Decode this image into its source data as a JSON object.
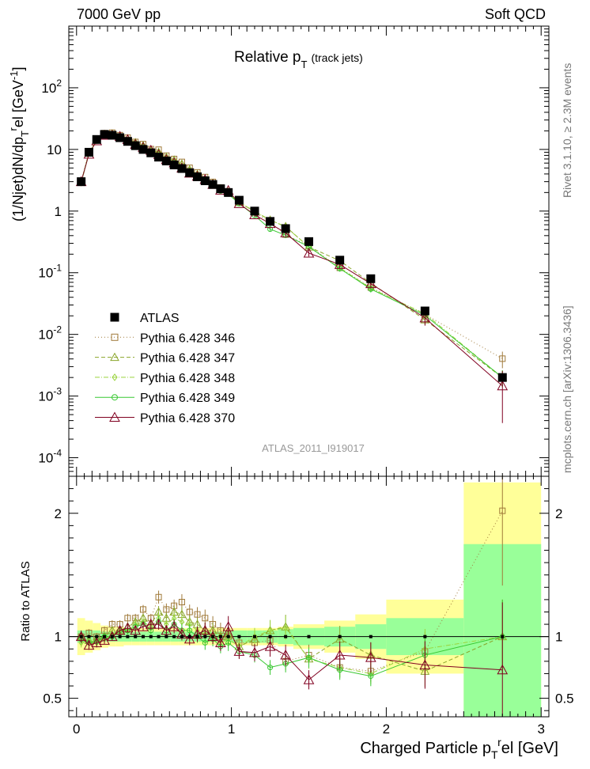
{
  "header": {
    "left": "7000 GeV pp",
    "right": "Soft QCD"
  },
  "title": {
    "main": "Relative p",
    "sub": "T",
    "suffix": "(track jets)"
  },
  "side": {
    "top": "Rivet 3.1.10, ≥ 2.3M events",
    "bottom": "mcplots.cern.ch [arXiv:1306.3436]"
  },
  "analysis": "ATLAS_2011_I919017",
  "ylabel_top": "(1/Njet)dN/dp_T^r el [GeV^-1]",
  "ylabel_bottom": "Ratio to ATLAS",
  "xlabel": "Charged Particle p_T^r el [GeV]",
  "colors": {
    "data": "#000000",
    "s346": "#a07a3a",
    "s347": "#8aa52a",
    "s348": "#9ad43e",
    "s349": "#39c832",
    "s370": "#800020",
    "band_yellow": "#ffff99",
    "band_green": "#99ff99"
  },
  "legend": [
    {
      "key": "data",
      "label": "ATLAS"
    },
    {
      "key": "s346",
      "label": "Pythia 6.428 346"
    },
    {
      "key": "s347",
      "label": "Pythia 6.428 347"
    },
    {
      "key": "s348",
      "label": "Pythia 6.428 348"
    },
    {
      "key": "s349",
      "label": "Pythia 6.428 349"
    },
    {
      "key": "s370",
      "label": "Pythia 6.428 370"
    }
  ],
  "chart_data": {
    "type": "scatter",
    "yscale": "log",
    "xlim": [
      -0.05,
      3.05
    ],
    "ylim": [
      5e-05,
      1000
    ],
    "ratio_ylim": [
      0.35,
      2.3
    ],
    "x_ticks": [
      "0",
      "1",
      "2",
      "3"
    ],
    "y_ticks": [
      "10^-4",
      "10^-3",
      "10^-2",
      "10^-1",
      "1",
      "10",
      "10^2"
    ],
    "ratio_ticks": [
      "0.5",
      "1",
      "2"
    ],
    "x": [
      0.03,
      0.08,
      0.13,
      0.18,
      0.23,
      0.28,
      0.33,
      0.38,
      0.43,
      0.48,
      0.53,
      0.58,
      0.63,
      0.68,
      0.73,
      0.78,
      0.83,
      0.88,
      0.93,
      0.98,
      1.05,
      1.15,
      1.25,
      1.35,
      1.5,
      1.7,
      1.9,
      2.25,
      2.75
    ],
    "xwidth": [
      0.025,
      0.025,
      0.025,
      0.025,
      0.025,
      0.025,
      0.025,
      0.025,
      0.025,
      0.025,
      0.025,
      0.025,
      0.025,
      0.025,
      0.025,
      0.025,
      0.025,
      0.025,
      0.025,
      0.025,
      0.05,
      0.05,
      0.05,
      0.05,
      0.1,
      0.1,
      0.1,
      0.25,
      0.25
    ],
    "data": [
      3.0,
      9.0,
      14.5,
      17.5,
      17.0,
      15.5,
      13.5,
      11.5,
      10.0,
      8.8,
      7.5,
      6.5,
      5.6,
      4.9,
      4.2,
      3.6,
      3.1,
      2.7,
      2.3,
      2.0,
      1.5,
      1.0,
      0.68,
      0.52,
      0.32,
      0.16,
      0.08,
      0.024,
      0.002
    ],
    "band_green": [
      0.05,
      0.05,
      0.05,
      0.04,
      0.04,
      0.04,
      0.04,
      0.04,
      0.04,
      0.04,
      0.04,
      0.04,
      0.04,
      0.04,
      0.04,
      0.04,
      0.04,
      0.04,
      0.04,
      0.04,
      0.05,
      0.05,
      0.05,
      0.06,
      0.07,
      0.08,
      0.1,
      0.15,
      0.75
    ],
    "band_yellow": [
      0.15,
      0.13,
      0.11,
      0.09,
      0.08,
      0.08,
      0.07,
      0.07,
      0.07,
      0.07,
      0.07,
      0.07,
      0.07,
      0.07,
      0.07,
      0.07,
      0.07,
      0.07,
      0.07,
      0.07,
      0.07,
      0.07,
      0.07,
      0.08,
      0.1,
      0.13,
      0.18,
      0.3,
      1.25
    ],
    "series": [
      {
        "key": "s346",
        "name": "Pythia 6.428 346",
        "marker": "square",
        "dash": "1,3",
        "ratio": [
          1.0,
          1.03,
          1.0,
          1.05,
          1.1,
          1.1,
          1.15,
          1.15,
          1.22,
          1.15,
          1.32,
          1.22,
          1.25,
          1.28,
          1.2,
          1.18,
          1.15,
          1.1,
          1.05,
          1.0,
          0.95,
          0.95,
          0.97,
          0.8,
          0.85,
          0.75,
          0.72,
          0.88,
          2.02
        ],
        "err": [
          0.04,
          0.03,
          0.03,
          0.03,
          0.03,
          0.03,
          0.03,
          0.03,
          0.03,
          0.03,
          0.04,
          0.04,
          0.04,
          0.05,
          0.05,
          0.05,
          0.06,
          0.06,
          0.06,
          0.07,
          0.06,
          0.07,
          0.08,
          0.09,
          0.1,
          0.11,
          0.12,
          0.18,
          0.3
        ]
      },
      {
        "key": "s347",
        "name": "Pythia 6.428 347",
        "marker": "triangle",
        "dash": "5,3",
        "ratio": [
          1.0,
          0.97,
          0.98,
          1.0,
          1.05,
          1.05,
          1.08,
          1.12,
          1.15,
          1.1,
          1.2,
          1.15,
          1.2,
          1.18,
          1.12,
          1.1,
          1.05,
          1.05,
          1.0,
          1.02,
          0.92,
          0.98,
          1.05,
          1.08,
          0.82,
          0.98,
          0.85,
          0.72,
          1.0
        ],
        "err": [
          0.04,
          0.03,
          0.03,
          0.03,
          0.03,
          0.03,
          0.03,
          0.03,
          0.03,
          0.03,
          0.04,
          0.04,
          0.04,
          0.05,
          0.05,
          0.05,
          0.06,
          0.06,
          0.06,
          0.07,
          0.06,
          0.07,
          0.08,
          0.09,
          0.1,
          0.11,
          0.12,
          0.18,
          0.3
        ]
      },
      {
        "key": "s348",
        "name": "Pythia 6.428 348",
        "marker": "diamond",
        "dash": "6,2,1,2",
        "ratio": [
          0.95,
          0.97,
          0.95,
          0.98,
          1.02,
          1.05,
          1.05,
          1.1,
          1.12,
          1.08,
          1.15,
          1.1,
          1.15,
          1.12,
          1.1,
          1.05,
          1.02,
          1.0,
          0.95,
          0.98,
          0.92,
          1.0,
          1.05,
          1.07,
          0.82,
          0.75,
          0.7,
          0.9,
          1.0
        ],
        "err": [
          0.04,
          0.03,
          0.03,
          0.03,
          0.03,
          0.03,
          0.03,
          0.03,
          0.03,
          0.03,
          0.04,
          0.04,
          0.04,
          0.05,
          0.05,
          0.05,
          0.06,
          0.06,
          0.06,
          0.07,
          0.06,
          0.07,
          0.08,
          0.09,
          0.1,
          0.11,
          0.12,
          0.18,
          0.3
        ]
      },
      {
        "key": "s349",
        "name": "Pythia 6.428 349",
        "marker": "circle",
        "dash": "",
        "ratio": [
          0.98,
          0.95,
          0.96,
          1.0,
          1.0,
          1.05,
          1.05,
          1.08,
          1.1,
          1.05,
          1.12,
          1.05,
          1.1,
          1.05,
          1.05,
          1.0,
          0.95,
          0.98,
          0.92,
          0.95,
          0.88,
          0.85,
          0.75,
          0.78,
          0.83,
          0.73,
          0.68,
          0.85,
          1.0
        ],
        "err": [
          0.04,
          0.03,
          0.03,
          0.03,
          0.03,
          0.03,
          0.03,
          0.03,
          0.03,
          0.03,
          0.04,
          0.04,
          0.04,
          0.05,
          0.05,
          0.05,
          0.06,
          0.06,
          0.06,
          0.07,
          0.06,
          0.07,
          0.08,
          0.09,
          0.1,
          0.11,
          0.12,
          0.18,
          0.3
        ]
      },
      {
        "key": "s370",
        "name": "Pythia 6.428 370",
        "marker": "triangle",
        "dash": "",
        "ratio": [
          1.0,
          0.93,
          0.95,
          0.97,
          1.0,
          1.05,
          1.07,
          1.05,
          1.08,
          1.1,
          1.1,
          1.05,
          1.08,
          1.02,
          0.98,
          1.02,
          1.05,
          1.0,
          0.95,
          1.08,
          0.88,
          0.87,
          0.92,
          0.85,
          0.65,
          0.85,
          0.83,
          0.77,
          0.73
        ],
        "err": [
          0.05,
          0.04,
          0.04,
          0.03,
          0.03,
          0.03,
          0.03,
          0.03,
          0.03,
          0.04,
          0.04,
          0.04,
          0.05,
          0.05,
          0.05,
          0.06,
          0.06,
          0.06,
          0.07,
          0.08,
          0.07,
          0.08,
          0.09,
          0.1,
          0.12,
          0.13,
          0.15,
          0.25,
          0.75
        ]
      }
    ]
  }
}
